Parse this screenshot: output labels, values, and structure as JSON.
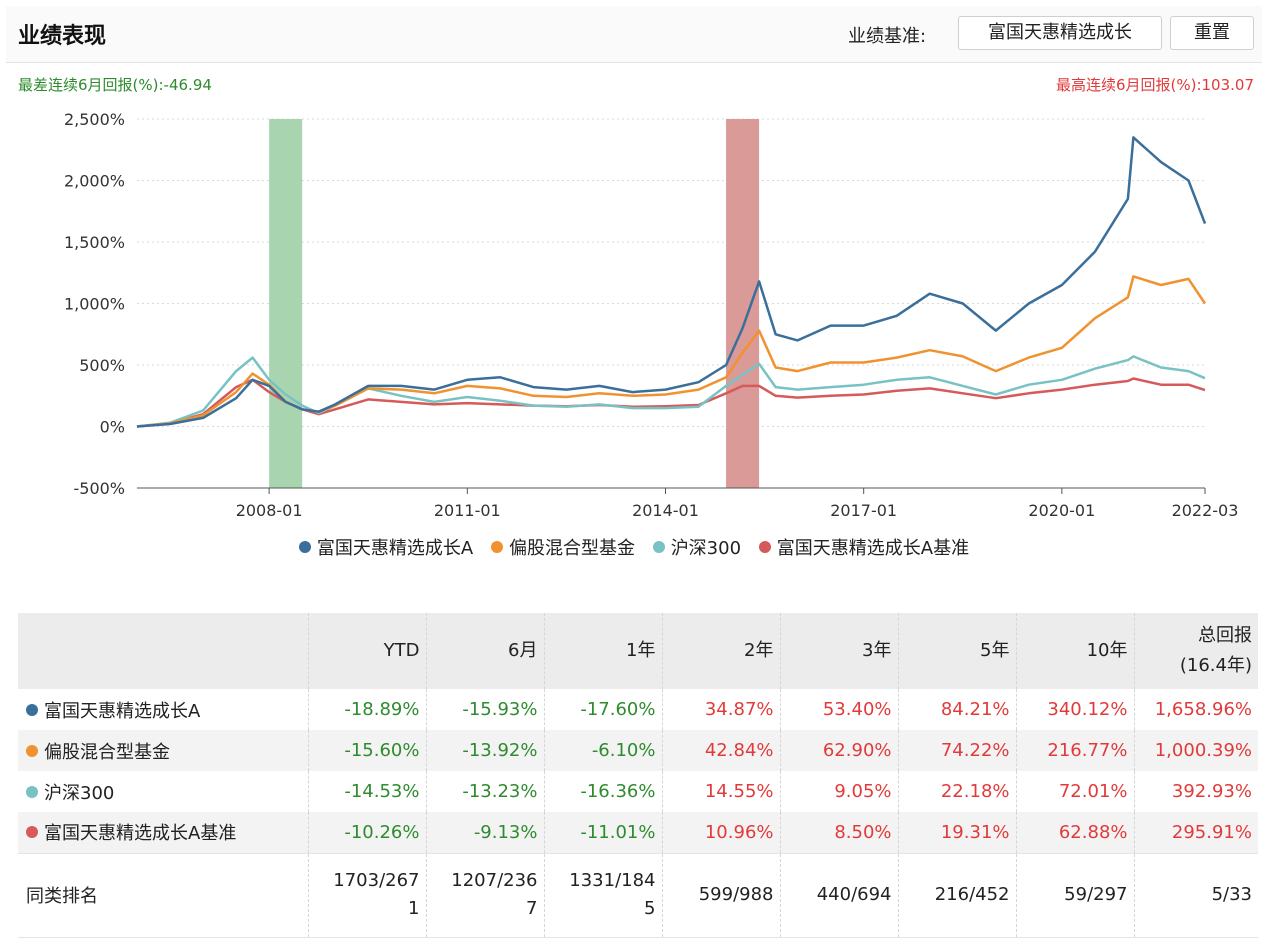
{
  "header": {
    "title": "业绩表现",
    "benchmark_label": "业绩基准:",
    "benchmark_value": "富国天惠精选成长",
    "reset_label": "重置"
  },
  "extremes": {
    "worst": "最差连续6月回报(%):-46.94",
    "best": "最高连续6月回报(%):103.07"
  },
  "colors": {
    "fund": "#3a6f9b",
    "mixed": "#f0922f",
    "hs300": "#78c2c4",
    "bench": "#d65a5a",
    "worst_band": "#a8d5b0",
    "best_band": "#d99a98",
    "neg_text": "#2e8b2e",
    "pos_text": "#e23a3a"
  },
  "chart_data": {
    "type": "line",
    "x_ticks": [
      "2008-01",
      "2011-01",
      "2014-01",
      "2017-01",
      "2020-01",
      "2022-03"
    ],
    "y_ticks": [
      "2,500%",
      "2,000%",
      "1,500%",
      "1,000%",
      "500%",
      "0%",
      "-500%"
    ],
    "ylim": [
      -500,
      2500
    ],
    "xlim": [
      "2006-01",
      "2022-03"
    ],
    "grid": true,
    "bands": [
      {
        "name": "worst",
        "from": "2008-01",
        "to": "2008-07"
      },
      {
        "name": "best",
        "from": "2014-12",
        "to": "2015-06"
      }
    ],
    "series": [
      {
        "name": "富国天惠精选成长A",
        "color": "#3a6f9b",
        "x": [
          "2006-01",
          "2006-07",
          "2007-01",
          "2007-07",
          "2007-10",
          "2008-01",
          "2008-04",
          "2008-07",
          "2008-10",
          "2009-01",
          "2009-07",
          "2010-01",
          "2010-07",
          "2011-01",
          "2011-07",
          "2012-01",
          "2012-07",
          "2013-01",
          "2013-07",
          "2014-01",
          "2014-07",
          "2014-12",
          "2015-03",
          "2015-06",
          "2015-09",
          "2016-01",
          "2016-07",
          "2017-01",
          "2017-07",
          "2018-01",
          "2018-07",
          "2019-01",
          "2019-07",
          "2020-01",
          "2020-07",
          "2021-01",
          "2021-02",
          "2021-07",
          "2021-12",
          "2022-03"
        ],
        "values": [
          0,
          20,
          70,
          230,
          380,
          330,
          200,
          140,
          120,
          180,
          330,
          330,
          300,
          380,
          400,
          320,
          300,
          330,
          280,
          300,
          360,
          500,
          800,
          1180,
          750,
          700,
          820,
          820,
          900,
          1080,
          1000,
          780,
          1000,
          1150,
          1420,
          1850,
          2350,
          2150,
          2000,
          1650
        ]
      },
      {
        "name": "偏股混合型基金",
        "color": "#f0922f",
        "x": [
          "2006-01",
          "2006-07",
          "2007-01",
          "2007-07",
          "2007-10",
          "2008-01",
          "2008-04",
          "2008-07",
          "2008-10",
          "2009-01",
          "2009-07",
          "2010-01",
          "2010-07",
          "2011-01",
          "2011-07",
          "2012-01",
          "2012-07",
          "2013-01",
          "2013-07",
          "2014-01",
          "2014-07",
          "2014-12",
          "2015-03",
          "2015-06",
          "2015-09",
          "2016-01",
          "2016-07",
          "2017-01",
          "2017-07",
          "2018-01",
          "2018-07",
          "2019-01",
          "2019-07",
          "2020-01",
          "2020-07",
          "2021-01",
          "2021-02",
          "2021-07",
          "2021-12",
          "2022-03"
        ],
        "values": [
          0,
          25,
          90,
          280,
          430,
          340,
          200,
          140,
          120,
          170,
          310,
          300,
          270,
          330,
          310,
          250,
          240,
          270,
          250,
          260,
          300,
          400,
          600,
          780,
          480,
          450,
          520,
          520,
          560,
          620,
          570,
          450,
          560,
          640,
          880,
          1050,
          1220,
          1150,
          1200,
          1000
        ]
      },
      {
        "name": "沪深300",
        "color": "#78c2c4",
        "x": [
          "2006-01",
          "2006-07",
          "2007-01",
          "2007-07",
          "2007-10",
          "2008-01",
          "2008-04",
          "2008-07",
          "2008-10",
          "2009-01",
          "2009-07",
          "2010-01",
          "2010-07",
          "2011-01",
          "2011-07",
          "2012-01",
          "2012-07",
          "2013-01",
          "2013-07",
          "2014-01",
          "2014-07",
          "2014-12",
          "2015-03",
          "2015-06",
          "2015-09",
          "2016-01",
          "2016-07",
          "2017-01",
          "2017-07",
          "2018-01",
          "2018-07",
          "2019-01",
          "2019-07",
          "2020-01",
          "2020-07",
          "2021-01",
          "2021-02",
          "2021-07",
          "2021-12",
          "2022-03"
        ],
        "values": [
          0,
          30,
          130,
          450,
          560,
          380,
          260,
          170,
          110,
          170,
          310,
          250,
          200,
          240,
          210,
          170,
          160,
          180,
          150,
          150,
          160,
          330,
          420,
          510,
          320,
          300,
          320,
          340,
          380,
          400,
          330,
          260,
          340,
          380,
          470,
          540,
          570,
          480,
          450,
          393
        ]
      },
      {
        "name": "富国天惠精选成长A基准",
        "color": "#d65a5a",
        "x": [
          "2006-01",
          "2006-07",
          "2007-01",
          "2007-07",
          "2007-10",
          "2008-01",
          "2008-04",
          "2008-07",
          "2008-10",
          "2009-01",
          "2009-07",
          "2010-01",
          "2010-07",
          "2011-01",
          "2011-07",
          "2012-01",
          "2012-07",
          "2013-01",
          "2013-07",
          "2014-01",
          "2014-07",
          "2014-12",
          "2015-03",
          "2015-06",
          "2015-09",
          "2016-01",
          "2016-07",
          "2017-01",
          "2017-07",
          "2018-01",
          "2018-07",
          "2019-01",
          "2019-07",
          "2020-01",
          "2020-07",
          "2021-01",
          "2021-02",
          "2021-07",
          "2021-12",
          "2022-03"
        ],
        "values": [
          0,
          25,
          100,
          320,
          380,
          280,
          200,
          140,
          100,
          140,
          220,
          200,
          180,
          190,
          180,
          170,
          165,
          175,
          160,
          165,
          175,
          270,
          330,
          330,
          250,
          235,
          250,
          260,
          290,
          310,
          270,
          230,
          270,
          300,
          340,
          370,
          390,
          340,
          340,
          296
        ]
      }
    ]
  },
  "table": {
    "headers": [
      "",
      "YTD",
      "6月",
      "1年",
      "2年",
      "3年",
      "5年",
      "10年",
      "总回报",
      "(16.4年)"
    ],
    "rows": [
      {
        "name": "富国天惠精选成长A",
        "color": "#3a6f9b",
        "values": [
          "-18.89%",
          "-15.93%",
          "-17.60%",
          "34.87%",
          "53.40%",
          "84.21%",
          "340.12%",
          "1,658.96%"
        ]
      },
      {
        "name": "偏股混合型基金",
        "color": "#f0922f",
        "values": [
          "-15.60%",
          "-13.92%",
          "-6.10%",
          "42.84%",
          "62.90%",
          "74.22%",
          "216.77%",
          "1,000.39%"
        ]
      },
      {
        "name": "沪深300",
        "color": "#78c2c4",
        "values": [
          "-14.53%",
          "-13.23%",
          "-16.36%",
          "14.55%",
          "9.05%",
          "22.18%",
          "72.01%",
          "392.93%"
        ]
      },
      {
        "name": "富国天惠精选成长A基准",
        "color": "#d65a5a",
        "values": [
          "-10.26%",
          "-9.13%",
          "-11.01%",
          "10.96%",
          "8.50%",
          "19.31%",
          "62.88%",
          "295.91%"
        ]
      }
    ],
    "rank": {
      "label": "同类排名",
      "values": [
        [
          "1703/267",
          "1"
        ],
        [
          "1207/236",
          "7"
        ],
        [
          "1331/184",
          "5"
        ],
        [
          "599/988",
          ""
        ],
        [
          "440/694",
          ""
        ],
        [
          "216/452",
          ""
        ],
        [
          "59/297",
          ""
        ],
        [
          "5/33",
          ""
        ]
      ]
    }
  }
}
